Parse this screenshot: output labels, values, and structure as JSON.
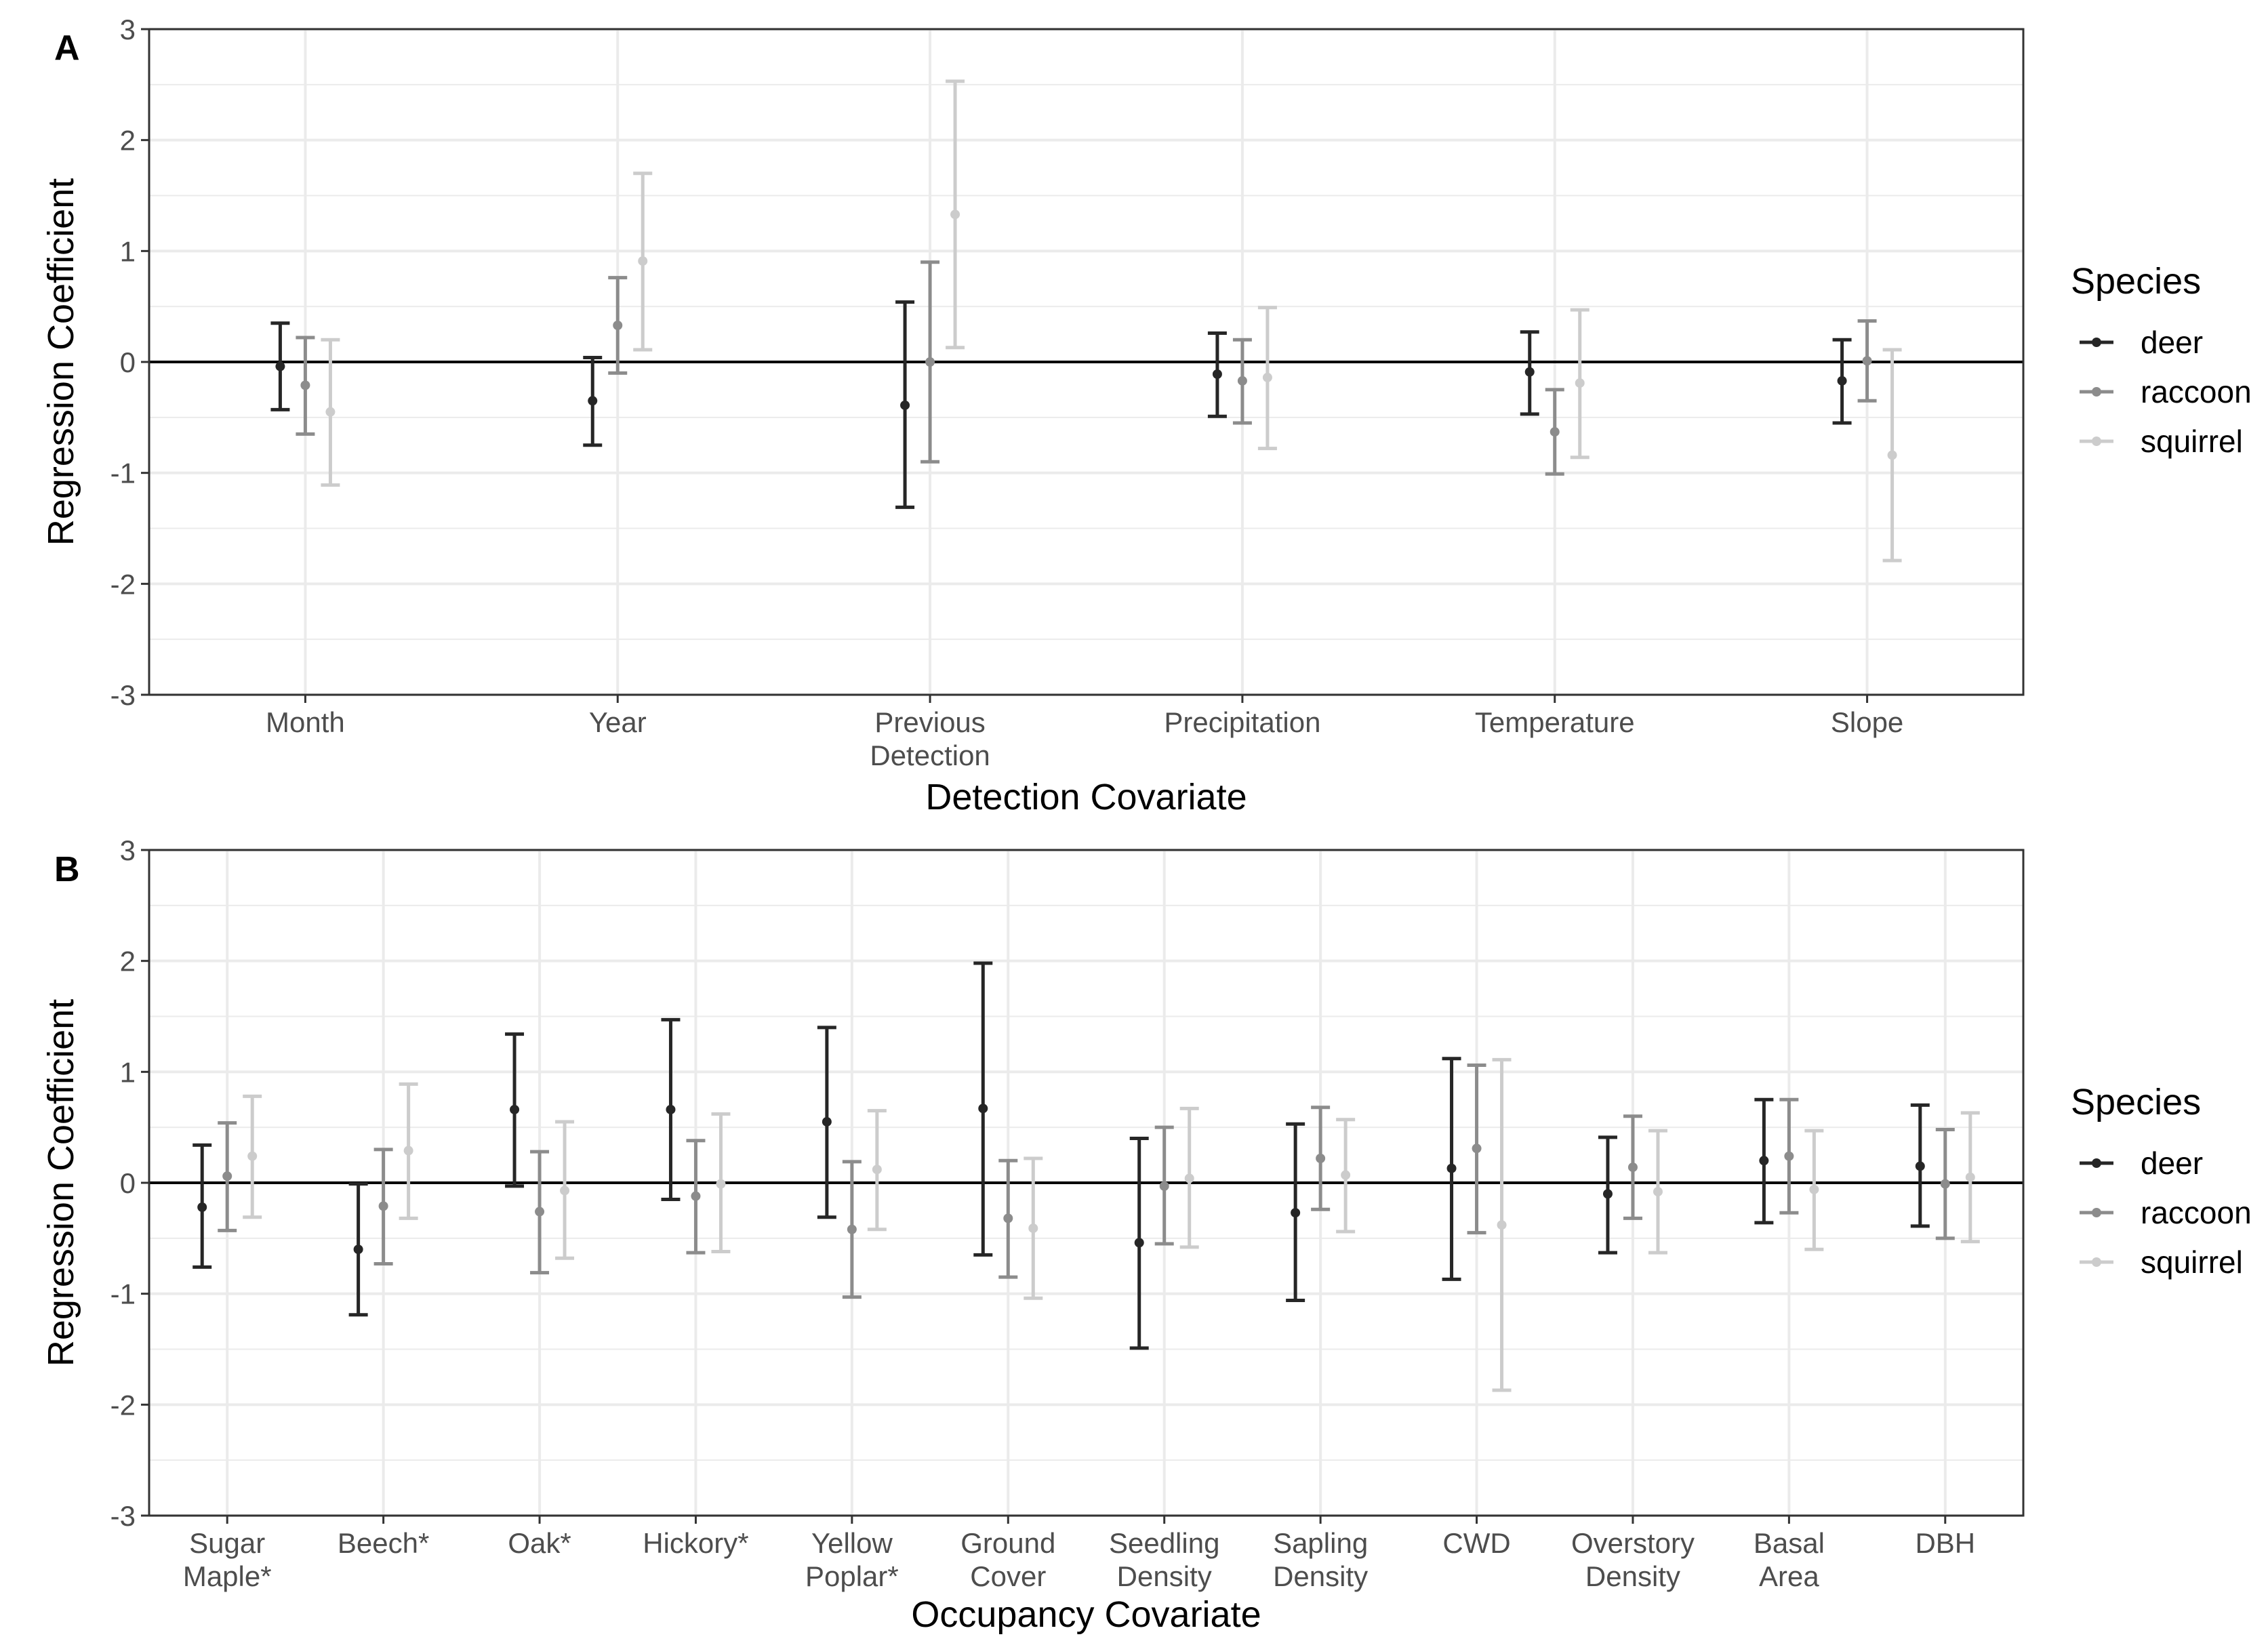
{
  "colors": {
    "deer": "#262626",
    "raccoon": "#8c8c8c",
    "squirrel": "#cccccc",
    "grid": "#ebebeb",
    "zero_line": "#000000",
    "panel_border": "#333333",
    "axis_text": "#4d4d4d"
  },
  "chart_data": [
    {
      "type": "errorbar",
      "panel_label": "A",
      "xlabel": "Detection Covariate",
      "ylabel": "Regression Coefficient",
      "ylim": [
        -3,
        3
      ],
      "yticks": [
        "-3",
        "-2",
        "-1",
        "0",
        "1",
        "2",
        "3"
      ],
      "legend": {
        "title": "Species",
        "position": "right",
        "entries": [
          "deer",
          "raccoon",
          "squirrel"
        ]
      },
      "categories": [
        [
          "Month"
        ],
        [
          "Year"
        ],
        [
          "Previous",
          "Detection"
        ],
        [
          "Precipitation"
        ],
        [
          "Temperature"
        ],
        [
          "Slope"
        ]
      ],
      "series": [
        {
          "name": "deer",
          "estimate": [
            -0.04,
            -0.35,
            -0.39,
            -0.11,
            -0.09,
            -0.17
          ],
          "lower": [
            -0.43,
            -0.75,
            -1.31,
            -0.49,
            -0.47,
            -0.55
          ],
          "upper": [
            0.35,
            0.04,
            0.54,
            0.26,
            0.27,
            0.2
          ]
        },
        {
          "name": "raccoon",
          "estimate": [
            -0.21,
            0.33,
            0.0,
            -0.17,
            -0.63,
            0.01
          ],
          "lower": [
            -0.65,
            -0.1,
            -0.9,
            -0.55,
            -1.01,
            -0.35
          ],
          "upper": [
            0.22,
            0.76,
            0.9,
            0.2,
            -0.25,
            0.37
          ]
        },
        {
          "name": "squirrel",
          "estimate": [
            -0.45,
            0.91,
            1.33,
            -0.14,
            -0.19,
            -0.84
          ],
          "lower": [
            -1.11,
            0.11,
            0.13,
            -0.78,
            -0.86,
            -1.79
          ],
          "upper": [
            0.2,
            1.7,
            2.53,
            0.49,
            0.47,
            0.11
          ]
        }
      ]
    },
    {
      "type": "errorbar",
      "panel_label": "B",
      "xlabel": "Occupancy Covariate",
      "ylabel": "Regression Coefficient",
      "ylim": [
        -3,
        3
      ],
      "yticks": [
        "-3",
        "-2",
        "-1",
        "0",
        "1",
        "2",
        "3"
      ],
      "legend": {
        "title": "Species",
        "position": "right",
        "entries": [
          "deer",
          "raccoon",
          "squirrel"
        ]
      },
      "categories": [
        [
          "Sugar",
          "Maple*"
        ],
        [
          "Beech*"
        ],
        [
          "Oak*"
        ],
        [
          "Hickory*"
        ],
        [
          "Yellow",
          "Poplar*"
        ],
        [
          "Ground",
          "Cover"
        ],
        [
          "Seedling",
          "Density"
        ],
        [
          "Sapling",
          "Density"
        ],
        [
          "CWD"
        ],
        [
          "Overstory",
          "Density"
        ],
        [
          "Basal",
          "Area"
        ],
        [
          "DBH"
        ]
      ],
      "series": [
        {
          "name": "deer",
          "estimate": [
            -0.22,
            -0.6,
            0.66,
            0.66,
            0.55,
            0.67,
            -0.54,
            -0.27,
            0.13,
            -0.1,
            0.2,
            0.15
          ],
          "lower": [
            -0.76,
            -1.19,
            -0.03,
            -0.15,
            -0.31,
            -0.65,
            -1.49,
            -1.06,
            -0.87,
            -0.63,
            -0.36,
            -0.39
          ],
          "upper": [
            0.34,
            -0.01,
            1.34,
            1.47,
            1.4,
            1.98,
            0.4,
            0.53,
            1.12,
            0.41,
            0.75,
            0.7
          ]
        },
        {
          "name": "raccoon",
          "estimate": [
            0.06,
            -0.21,
            -0.26,
            -0.12,
            -0.42,
            -0.32,
            -0.03,
            0.22,
            0.31,
            0.14,
            0.24,
            -0.01
          ],
          "lower": [
            -0.43,
            -0.73,
            -0.81,
            -0.63,
            -1.03,
            -0.85,
            -0.55,
            -0.24,
            -0.45,
            -0.32,
            -0.27,
            -0.5
          ],
          "upper": [
            0.54,
            0.3,
            0.28,
            0.38,
            0.19,
            0.2,
            0.5,
            0.68,
            1.06,
            0.6,
            0.75,
            0.48
          ]
        },
        {
          "name": "squirrel",
          "estimate": [
            0.24,
            0.29,
            -0.07,
            -0.01,
            0.12,
            -0.41,
            0.04,
            0.07,
            -0.38,
            -0.08,
            -0.06,
            0.05
          ],
          "lower": [
            -0.31,
            -0.32,
            -0.68,
            -0.62,
            -0.42,
            -1.04,
            -0.58,
            -0.44,
            -1.87,
            -0.63,
            -0.6,
            -0.53
          ],
          "upper": [
            0.78,
            0.89,
            0.55,
            0.62,
            0.65,
            0.22,
            0.67,
            0.57,
            1.11,
            0.47,
            0.47,
            0.63
          ]
        }
      ]
    }
  ]
}
